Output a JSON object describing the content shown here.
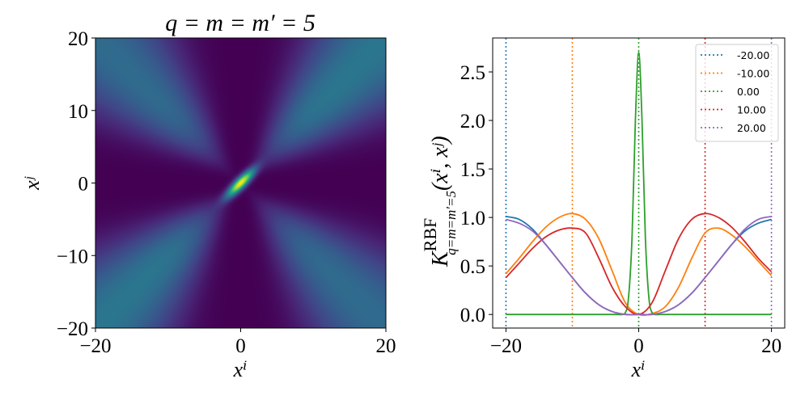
{
  "chart_data": [
    {
      "type": "heatmap",
      "title": "q = m = m′ = 5",
      "xlabel": "xⁱ",
      "ylabel": "xʲ",
      "xlim": [
        -20,
        20
      ],
      "ylim": [
        -20,
        20
      ],
      "xticks": [
        "−20",
        "0",
        "20"
      ],
      "yticks": [
        "20",
        "10",
        "0",
        "−10",
        "−20"
      ],
      "colormap": "viridis",
      "vmin": 0,
      "vmax": 2.7
    },
    {
      "type": "line",
      "xlabel": "xⁱ",
      "ylabel": {
        "base": "K",
        "sup": "RBF",
        "sub": "q=m=m′=5",
        "args": "(xⁱ, xʲ)"
      },
      "xlim": [
        -22,
        22
      ],
      "ylim": [
        -0.14,
        2.85
      ],
      "xticks": [
        {
          "v": -20,
          "label": "−20"
        },
        {
          "v": 0,
          "label": "0"
        },
        {
          "v": 20,
          "label": "20"
        }
      ],
      "yticks": [
        {
          "v": 0,
          "label": "0.0"
        },
        {
          "v": 0.5,
          "label": "0.5"
        },
        {
          "v": 1,
          "label": "1.0"
        },
        {
          "v": 1.5,
          "label": "1.5"
        },
        {
          "v": 2,
          "label": "2.0"
        },
        {
          "v": 2.5,
          "label": "2.5"
        }
      ],
      "grid": false,
      "legend_placement": "top-right",
      "vlines": [
        {
          "x": -20,
          "color": "#1f77b4"
        },
        {
          "x": -10,
          "color": "#ff7f0e"
        },
        {
          "x": 0,
          "color": "#2ca02c"
        },
        {
          "x": 10,
          "color": "#d62728"
        },
        {
          "x": 20,
          "color": "#9467bd"
        }
      ],
      "series": [
        {
          "name": "-20.00",
          "color": "#1f77b4",
          "x": [
            -20,
            -18,
            -16,
            -14,
            -12,
            -10,
            -8,
            -6,
            -4,
            -2,
            0,
            2,
            4,
            6,
            8,
            10,
            12,
            14,
            16,
            18,
            20
          ],
          "y": [
            1.01,
            0.98,
            0.88,
            0.72,
            0.55,
            0.38,
            0.22,
            0.1,
            0.03,
            0.0,
            0.0,
            0.0,
            0.03,
            0.1,
            0.22,
            0.38,
            0.55,
            0.72,
            0.86,
            0.94,
            0.98
          ]
        },
        {
          "name": "-10.00",
          "color": "#ff7f0e",
          "x": [
            -20,
            -18,
            -16,
            -14,
            -12,
            -10,
            -8,
            -6,
            -4,
            -2,
            0,
            2,
            4,
            6,
            8,
            10,
            12,
            14,
            16,
            18,
            20
          ],
          "y": [
            0.42,
            0.58,
            0.75,
            0.9,
            1.0,
            1.04,
            0.98,
            0.78,
            0.45,
            0.12,
            0.0,
            0.01,
            0.08,
            0.28,
            0.58,
            0.84,
            0.89,
            0.82,
            0.7,
            0.55,
            0.4
          ]
        },
        {
          "name": "0.00",
          "color": "#2ca02c",
          "x": [
            -20,
            -4,
            -3,
            -2,
            -1.5,
            -1,
            -0.5,
            0,
            0.5,
            1,
            1.5,
            2,
            3,
            4,
            20
          ],
          "y": [
            0,
            0,
            0,
            0.02,
            0.2,
            0.8,
            2.0,
            2.7,
            2.0,
            0.8,
            0.2,
            0.02,
            0,
            0,
            0
          ]
        },
        {
          "name": "10.00",
          "color": "#d62728",
          "x": [
            -20,
            -18,
            -16,
            -14,
            -12,
            -10,
            -8,
            -6,
            -4,
            -2,
            0,
            2,
            4,
            6,
            8,
            10,
            12,
            14,
            16,
            18,
            20
          ],
          "y": [
            0.38,
            0.53,
            0.68,
            0.8,
            0.87,
            0.89,
            0.84,
            0.58,
            0.28,
            0.08,
            0.0,
            0.12,
            0.45,
            0.78,
            0.98,
            1.04,
            1.0,
            0.9,
            0.75,
            0.58,
            0.44
          ]
        },
        {
          "name": "20.00",
          "color": "#9467bd",
          "x": [
            -20,
            -18,
            -16,
            -14,
            -12,
            -10,
            -8,
            -6,
            -4,
            -2,
            0,
            2,
            4,
            6,
            8,
            10,
            12,
            14,
            16,
            18,
            20
          ],
          "y": [
            0.98,
            0.94,
            0.86,
            0.72,
            0.55,
            0.38,
            0.22,
            0.1,
            0.03,
            0.0,
            0.0,
            0.0,
            0.03,
            0.1,
            0.22,
            0.38,
            0.55,
            0.72,
            0.88,
            0.98,
            1.01
          ]
        }
      ]
    }
  ]
}
